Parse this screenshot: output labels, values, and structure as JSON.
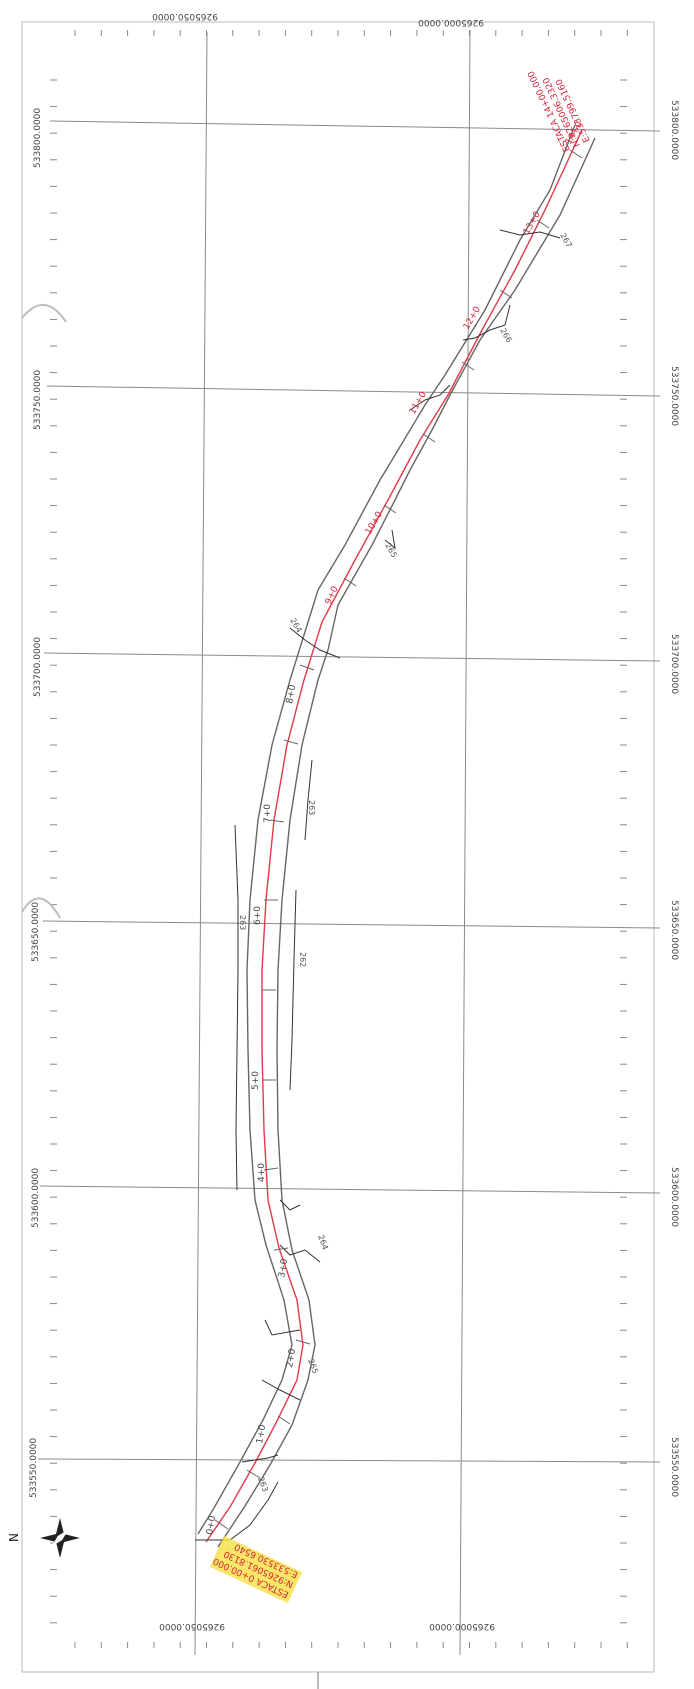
{
  "grid": {
    "x_labels": [
      "9265050.0000",
      "9265000.0000"
    ],
    "y_labels": [
      "533800.0000",
      "533750.0000",
      "533700.0000",
      "533650.0000",
      "533600.0000",
      "533550.0000"
    ]
  },
  "stations": [
    "0+0",
    "1+0",
    "2+0",
    "3+0",
    "4+0",
    "5+0",
    "6+0",
    "7+0",
    "8+0",
    "9+0",
    "10+0",
    "11+0",
    "12+0",
    "13+0",
    "14+0"
  ],
  "station_start": [
    "ESTACA 0+00.000",
    "N:9265061.8130",
    "E:533530.6540"
  ],
  "station_end": [
    "ESTACA 14+00.000",
    "N:9265006.3320",
    "E:533799.5160"
  ],
  "elevations": [
    "263",
    "265",
    "264",
    "263",
    "262",
    "263",
    "264",
    "265",
    "266",
    "267"
  ],
  "north_arrow": {
    "letter": "N"
  },
  "colors": {
    "grid": "#777777",
    "road": "#666666",
    "axis": "#e23a4a",
    "label_bg": "#f7e34b",
    "terrain": "#333333"
  }
}
